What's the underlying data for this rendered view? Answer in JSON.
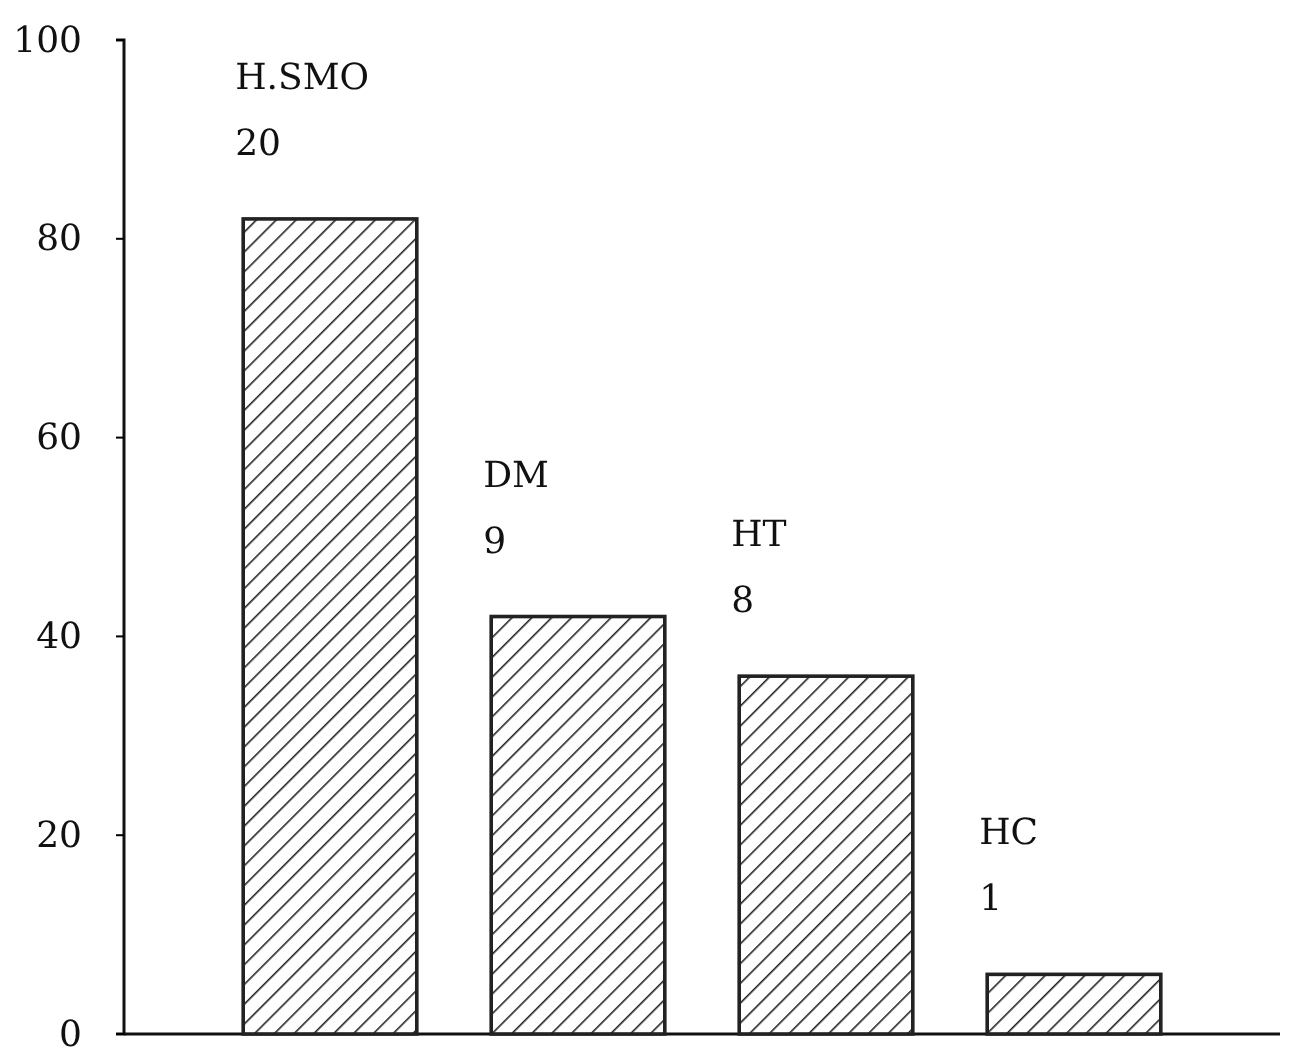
{
  "chart_data": {
    "type": "bar",
    "categories": [
      "H.SMO",
      "DM",
      "HT",
      "HC"
    ],
    "values": [
      82,
      42,
      36,
      6
    ],
    "color": "#222222",
    "ylim": [
      0,
      100
    ],
    "yticks": [
      0,
      20,
      40,
      60,
      80,
      100
    ],
    "grid": false,
    "tick_labels": "y",
    "annotations": [
      {
        "text": "20",
        "x": "H.SMO",
        "y": 82
      },
      {
        "text": "9",
        "x": "DM",
        "y": 42
      },
      {
        "text": "8",
        "x": "HT",
        "y": 36
      },
      {
        "text": "1",
        "x": "HC",
        "y": 6
      }
    ]
  }
}
